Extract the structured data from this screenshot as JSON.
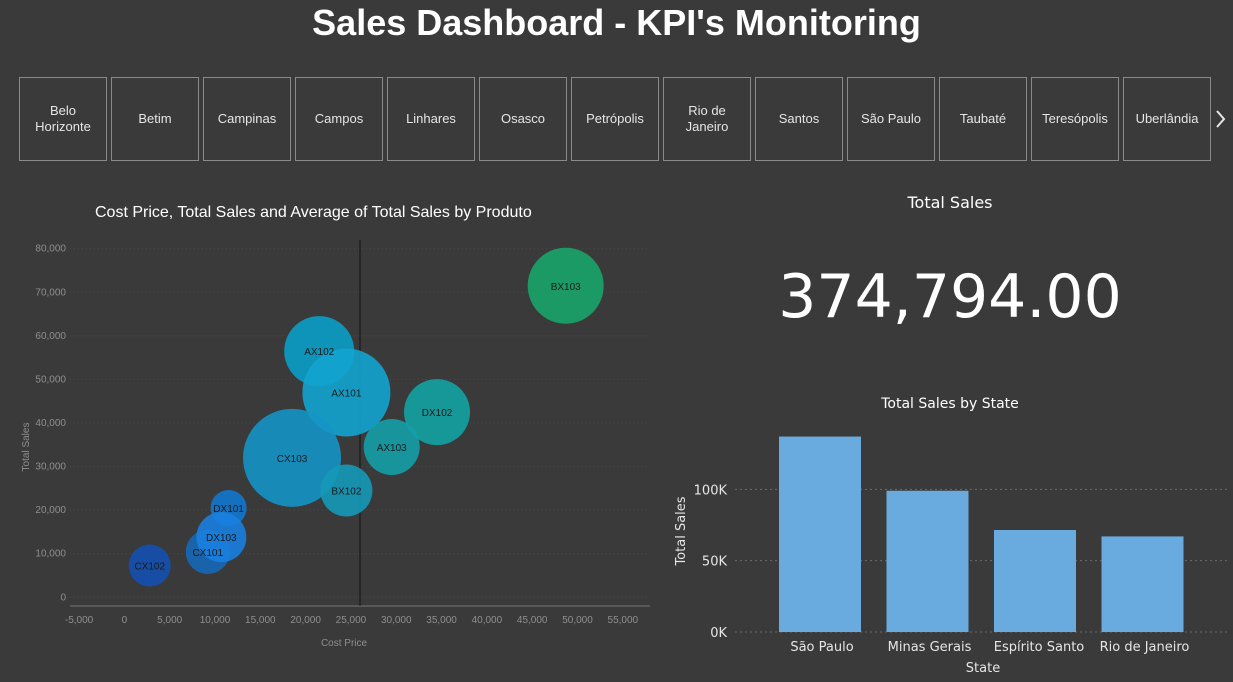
{
  "dashboard": {
    "title": "Sales Dashboard - KPI's Monitoring"
  },
  "slicer": {
    "items": [
      "Belo Horizonte",
      "Betim",
      "Campinas",
      "Campos",
      "Linhares",
      "Osasco",
      "Petrópolis",
      "Rio de Janeiro",
      "Santos",
      "São Paulo",
      "Taubaté",
      "Teresópolis",
      "Uberlândia"
    ],
    "next_icon": "chevron-right-icon"
  },
  "scatter": {
    "title": "Cost Price, Total Sales and Average of Total Sales by Produto",
    "xlabel": "Cost Price",
    "ylabel": "Total Sales"
  },
  "card": {
    "label": "Total Sales",
    "value": "374,794.00"
  },
  "barchart": {
    "title": "Total Sales by State",
    "xlabel": "State",
    "ylabel": "Total Sales"
  },
  "chart_data": [
    {
      "type": "scatter",
      "title": "Cost Price, Total Sales and Average of Total Sales by Produto",
      "xlabel": "Cost Price",
      "ylabel": "Total Sales",
      "xlim": [
        -6000,
        58000
      ],
      "ylim": [
        -2000,
        82000
      ],
      "xticks": [
        -5000,
        0,
        5000,
        10000,
        15000,
        20000,
        25000,
        30000,
        35000,
        40000,
        45000,
        50000,
        55000
      ],
      "xtick_labels": [
        "-5,000",
        "0",
        "5,000",
        "10,000",
        "15,000",
        "20,000",
        "25,000",
        "30,000",
        "35,000",
        "40,000",
        "45,000",
        "50,000",
        "55,000"
      ],
      "yticks": [
        0,
        10000,
        20000,
        30000,
        40000,
        50000,
        60000,
        70000,
        80000
      ],
      "ytick_labels": [
        "0",
        "10,000",
        "20,000",
        "30,000",
        "40,000",
        "50,000",
        "60,000",
        "70,000",
        "80,000"
      ],
      "reference_line_x": 26000,
      "points": [
        {
          "label": "BX103",
          "x": 48700,
          "y": 71500,
          "size": 38,
          "color": "#1aa56a"
        },
        {
          "label": "AX102",
          "x": 21500,
          "y": 56500,
          "size": 35,
          "color": "#0b9fc8"
        },
        {
          "label": "AX101",
          "x": 24500,
          "y": 47000,
          "size": 44,
          "color": "#12a4cf"
        },
        {
          "label": "DX102",
          "x": 34500,
          "y": 42500,
          "size": 33,
          "color": "#14a3a3"
        },
        {
          "label": "AX103",
          "x": 29500,
          "y": 34500,
          "size": 28,
          "color": "#159ea8"
        },
        {
          "label": "CX103",
          "x": 18500,
          "y": 32000,
          "size": 49,
          "color": "#1593c6"
        },
        {
          "label": "BX102",
          "x": 24500,
          "y": 24500,
          "size": 26,
          "color": "#1599b8"
        },
        {
          "label": "DX101",
          "x": 11500,
          "y": 20500,
          "size": 18,
          "color": "#1278cf"
        },
        {
          "label": "CX101",
          "x": 9200,
          "y": 10400,
          "size": 22,
          "color": "#1668b8"
        },
        {
          "label": "DX103",
          "x": 10700,
          "y": 13800,
          "size": 25,
          "color": "#1980e0"
        },
        {
          "label": "CX102",
          "x": 2800,
          "y": 7300,
          "size": 21,
          "color": "#1450b0"
        }
      ]
    },
    {
      "type": "bar",
      "title": "Total Sales by State",
      "xlabel": "State",
      "ylabel": "Total Sales",
      "categories": [
        "São Paulo",
        "Minas Gerais",
        "Espírito Santo",
        "Rio de Janeiro"
      ],
      "values": [
        137000,
        99000,
        71500,
        67000
      ],
      "ylim": [
        0,
        150000
      ],
      "yticks": [
        0,
        50000,
        100000
      ],
      "ytick_labels": [
        "0K",
        "50K",
        "100K"
      ],
      "color": "#6aabdf"
    }
  ]
}
